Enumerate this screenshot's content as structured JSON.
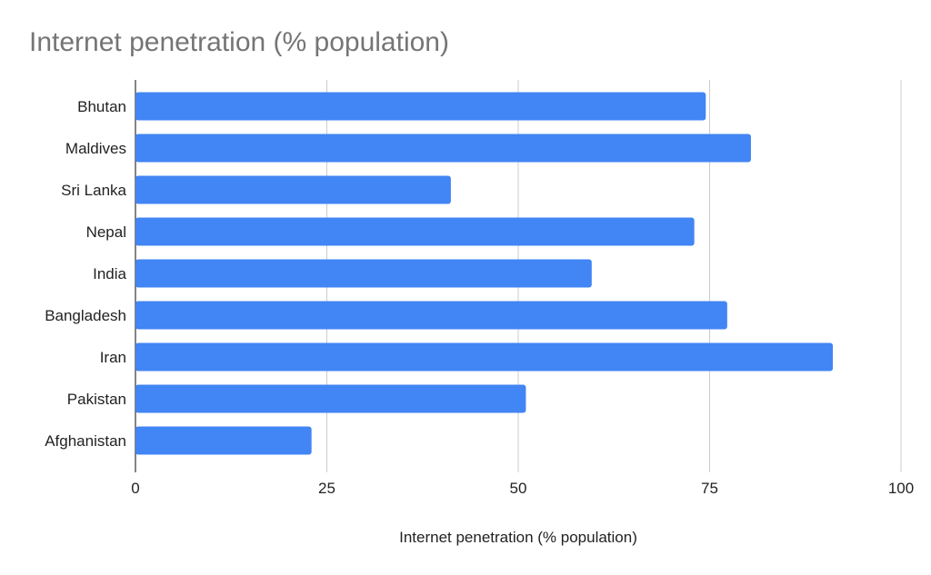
{
  "chart_data": {
    "type": "bar",
    "orientation": "horizontal",
    "title": "Internet penetration (% population)",
    "xlabel": "Internet penetration (% population)",
    "ylabel": "",
    "categories": [
      "Bhutan",
      "Maldives",
      "Sri Lanka",
      "Nepal",
      "India",
      "Bangladesh",
      "Iran",
      "Pakistan",
      "Afghanistan"
    ],
    "values": [
      74.5,
      80.4,
      41.2,
      73.0,
      59.6,
      77.3,
      91.1,
      51.0,
      23.0
    ],
    "xlim": [
      0,
      100
    ],
    "xticks": [
      "0",
      "25",
      "50",
      "75",
      "100"
    ],
    "grid": true,
    "legend": "none",
    "bar_color": "#4285f4"
  }
}
